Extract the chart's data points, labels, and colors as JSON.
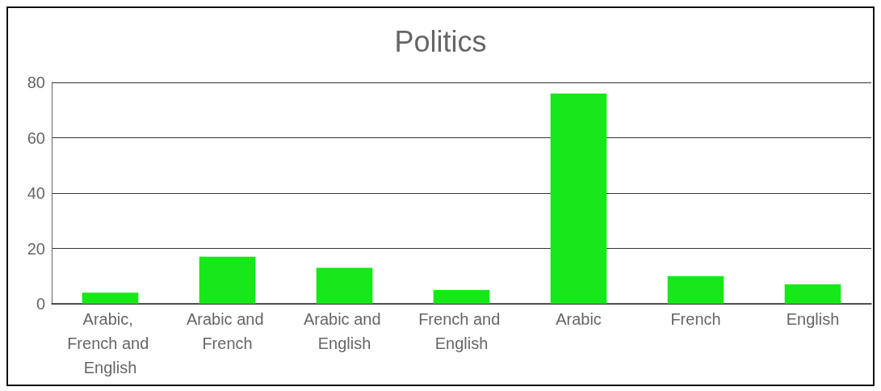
{
  "chart_data": {
    "type": "bar",
    "title": "Politics",
    "categories": [
      "Arabic, French and English",
      "Arabic and French",
      "Arabic and English",
      "French and English",
      "Arabic",
      "French",
      "English"
    ],
    "values": [
      4,
      17,
      13,
      5,
      76,
      10,
      7
    ],
    "color": "#16e81a",
    "ylim": [
      0,
      80
    ],
    "yticks": [
      0,
      20,
      40,
      60,
      80
    ],
    "grid": "y"
  }
}
